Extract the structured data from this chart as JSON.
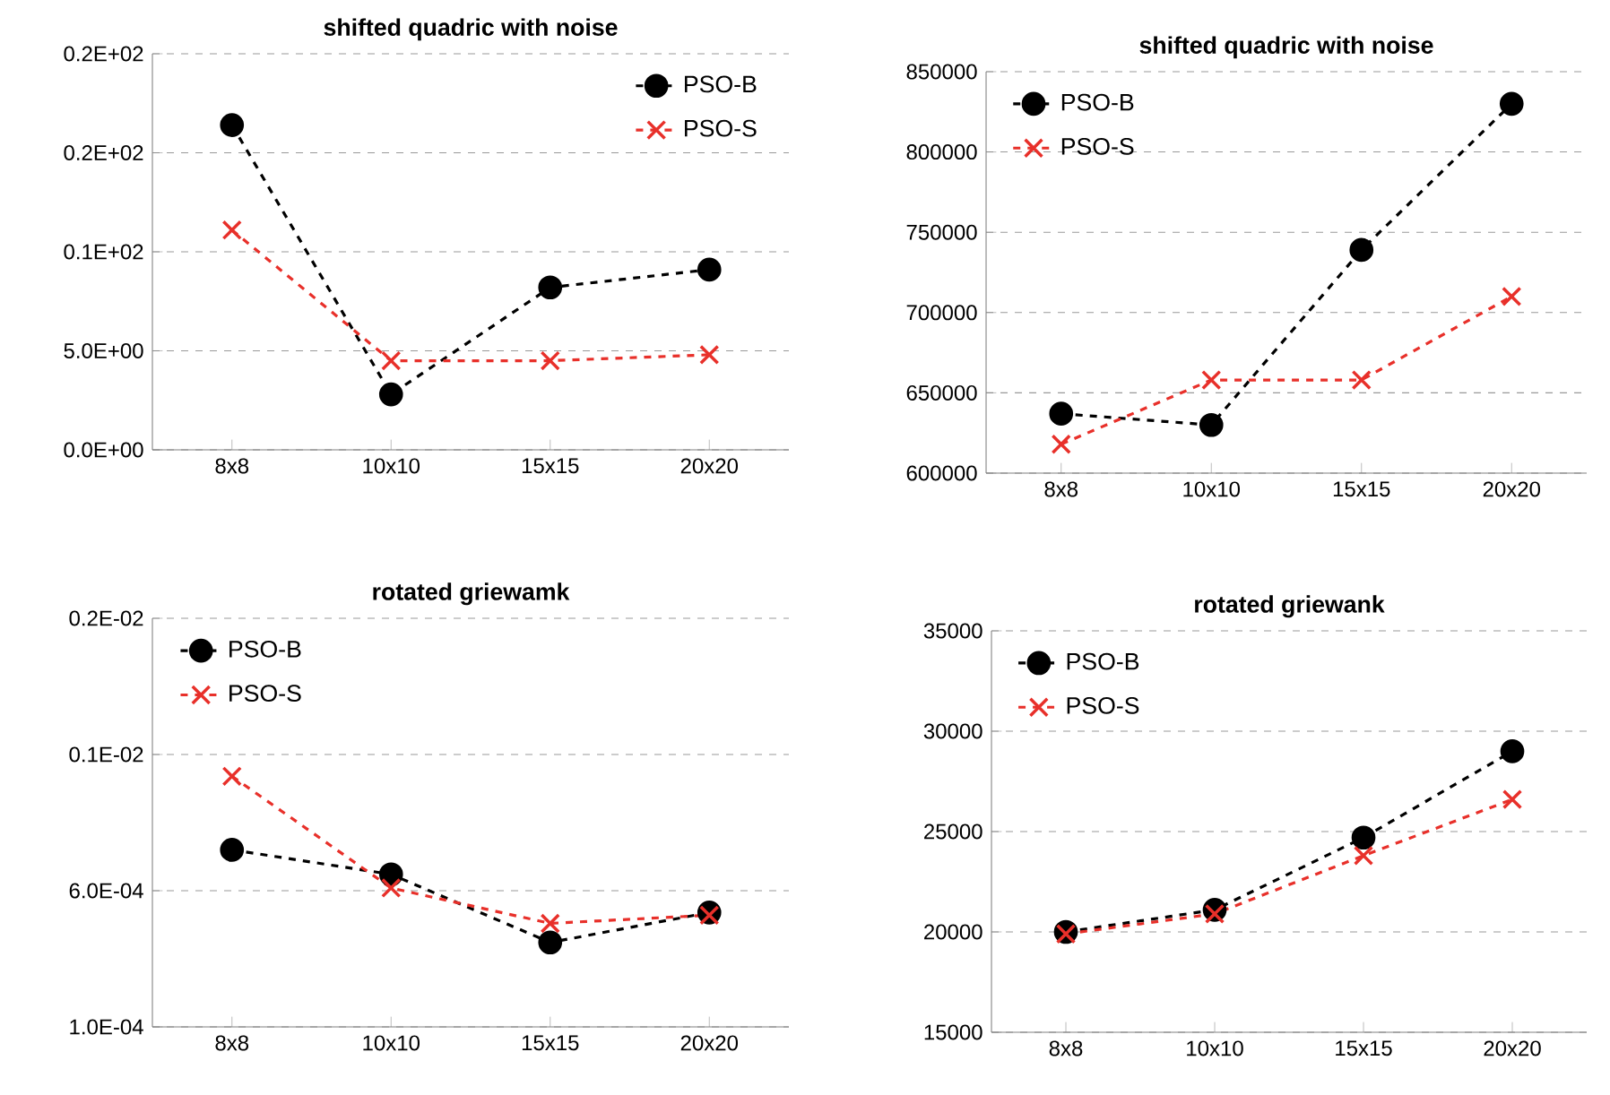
{
  "chart_data": [
    {
      "type": "line",
      "title": "shifted quadric with noise",
      "categories": [
        "8x8",
        "10x10",
        "15x15",
        "20x20"
      ],
      "ylim": [
        0,
        20
      ],
      "yticks": [
        {
          "value": 0,
          "label": "0.0E+00"
        },
        {
          "value": 5,
          "label": "5.0E+00"
        },
        {
          "value": 10,
          "label": "0.1E+02"
        },
        {
          "value": 15,
          "label": "0.2E+02"
        },
        {
          "value": 20,
          "label": "0.2E+02"
        }
      ],
      "grid": "y",
      "legend": "top right",
      "line_style": "dashed",
      "series": [
        {
          "name": "PSO-B",
          "color": "#000000",
          "marker": "circle",
          "values": [
            16.4,
            2.8,
            8.2,
            9.1
          ]
        },
        {
          "name": "PSO-S",
          "color": "#e8302a",
          "marker": "cross",
          "values": [
            11.1,
            4.5,
            4.5,
            4.8
          ]
        }
      ]
    },
    {
      "type": "line",
      "title": "shifted quadric with noise",
      "categories": [
        "8x8",
        "10x10",
        "15x15",
        "20x20"
      ],
      "ylim": [
        600000,
        850000
      ],
      "yticks": [
        600000,
        650000,
        700000,
        750000,
        800000,
        850000
      ],
      "grid": "y",
      "legend": "top left",
      "line_style": "dashed",
      "series": [
        {
          "name": "PSO-B",
          "color": "#000000",
          "marker": "circle",
          "values": [
            637000,
            630000,
            739000,
            830000
          ]
        },
        {
          "name": "PSO-S",
          "color": "#e8302a",
          "marker": "cross",
          "values": [
            618000,
            658000,
            658000,
            710000
          ]
        }
      ]
    },
    {
      "type": "line",
      "title": "rotated griewamk",
      "categories": [
        "8x8",
        "10x10",
        "15x15",
        "20x20"
      ],
      "ylim": [
        0.0001,
        0.0016
      ],
      "yticks": [
        {
          "value": 0.0001,
          "label": "1.0E-04"
        },
        {
          "value": 0.0006,
          "label": "6.0E-04"
        },
        {
          "value": 0.0011,
          "label": "0.1E-02"
        },
        {
          "value": 0.0016,
          "label": "0.2E-02"
        }
      ],
      "grid": "y",
      "legend": "top left",
      "line_style": "dashed",
      "series": [
        {
          "name": "PSO-B",
          "color": "#000000",
          "marker": "circle",
          "values": [
            0.00075,
            0.00066,
            0.00041,
            0.00052
          ]
        },
        {
          "name": "PSO-S",
          "color": "#e8302a",
          "marker": "cross",
          "values": [
            0.00102,
            0.00061,
            0.00048,
            0.00051
          ]
        }
      ]
    },
    {
      "type": "line",
      "title": "rotated griewank",
      "categories": [
        "8x8",
        "10x10",
        "15x15",
        "20x20"
      ],
      "ylim": [
        15000,
        35000
      ],
      "yticks": [
        15000,
        20000,
        25000,
        30000,
        35000
      ],
      "grid": "y",
      "legend": "top left",
      "line_style": "dashed",
      "series": [
        {
          "name": "PSO-B",
          "color": "#000000",
          "marker": "circle",
          "values": [
            20000,
            21100,
            24700,
            29000
          ]
        },
        {
          "name": "PSO-S",
          "color": "#e8302a",
          "marker": "cross",
          "values": [
            19900,
            20900,
            23800,
            26600
          ]
        }
      ]
    }
  ]
}
